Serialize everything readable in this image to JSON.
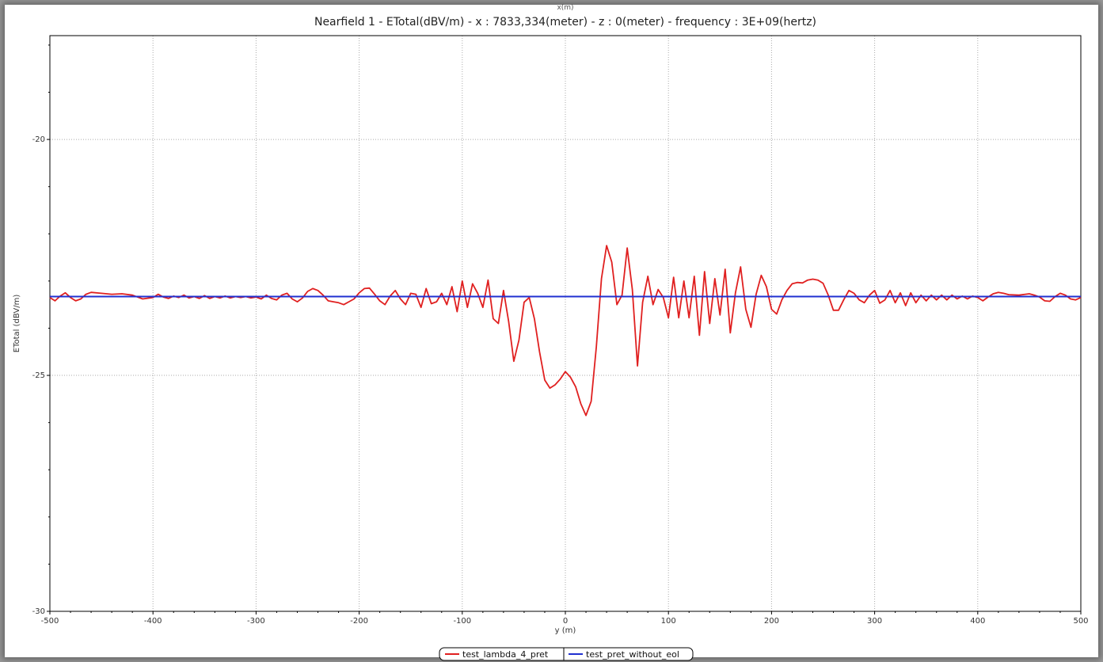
{
  "chart_data": {
    "type": "line",
    "top_axis_label": "x(m)",
    "title": "Nearfield 1 - ETotal(dBV/m) - x : 7833,334(meter) - z : 0(meter) - frequency : 3E+09(hertz)",
    "xlabel": "y (m)",
    "ylabel": "ETotal (dBV/m)",
    "xlim": [
      -500,
      500
    ],
    "ylim": [
      -30,
      -17.8
    ],
    "x_ticks": [
      -500,
      -400,
      -300,
      -200,
      -100,
      0,
      100,
      200,
      300,
      400,
      500
    ],
    "y_ticks": [
      -20,
      -25,
      -30
    ],
    "grid": true,
    "legend_position": "bottom-center",
    "series": [
      {
        "name": "test_lambda_4_pret",
        "color": "#e02020",
        "points": [
          [
            -500,
            -23.35
          ],
          [
            -495,
            -23.42
          ],
          [
            -490,
            -23.32
          ],
          [
            -485,
            -23.25
          ],
          [
            -480,
            -23.35
          ],
          [
            -475,
            -23.42
          ],
          [
            -470,
            -23.38
          ],
          [
            -465,
            -23.28
          ],
          [
            -460,
            -23.24
          ],
          [
            -450,
            -23.26
          ],
          [
            -440,
            -23.28
          ],
          [
            -430,
            -23.27
          ],
          [
            -420,
            -23.3
          ],
          [
            -410,
            -23.38
          ],
          [
            -400,
            -23.35
          ],
          [
            -395,
            -23.28
          ],
          [
            -390,
            -23.34
          ],
          [
            -385,
            -23.37
          ],
          [
            -380,
            -23.32
          ],
          [
            -375,
            -23.35
          ],
          [
            -370,
            -23.3
          ],
          [
            -365,
            -23.36
          ],
          [
            -360,
            -23.33
          ],
          [
            -355,
            -23.37
          ],
          [
            -350,
            -23.31
          ],
          [
            -345,
            -23.37
          ],
          [
            -340,
            -23.33
          ],
          [
            -335,
            -23.36
          ],
          [
            -330,
            -23.32
          ],
          [
            -325,
            -23.36
          ],
          [
            -320,
            -23.33
          ],
          [
            -315,
            -23.35
          ],
          [
            -310,
            -23.33
          ],
          [
            -305,
            -23.36
          ],
          [
            -300,
            -23.34
          ],
          [
            -295,
            -23.38
          ],
          [
            -290,
            -23.3
          ],
          [
            -285,
            -23.37
          ],
          [
            -280,
            -23.4
          ],
          [
            -275,
            -23.3
          ],
          [
            -270,
            -23.26
          ],
          [
            -265,
            -23.38
          ],
          [
            -260,
            -23.44
          ],
          [
            -255,
            -23.36
          ],
          [
            -250,
            -23.22
          ],
          [
            -245,
            -23.16
          ],
          [
            -240,
            -23.2
          ],
          [
            -235,
            -23.3
          ],
          [
            -230,
            -23.42
          ],
          [
            -225,
            -23.44
          ],
          [
            -220,
            -23.46
          ],
          [
            -215,
            -23.5
          ],
          [
            -210,
            -23.44
          ],
          [
            -205,
            -23.38
          ],
          [
            -200,
            -23.25
          ],
          [
            -195,
            -23.16
          ],
          [
            -190,
            -23.15
          ],
          [
            -185,
            -23.28
          ],
          [
            -180,
            -23.42
          ],
          [
            -175,
            -23.5
          ],
          [
            -170,
            -23.32
          ],
          [
            -165,
            -23.2
          ],
          [
            -160,
            -23.38
          ],
          [
            -155,
            -23.5
          ],
          [
            -150,
            -23.26
          ],
          [
            -145,
            -23.28
          ],
          [
            -140,
            -23.56
          ],
          [
            -135,
            -23.16
          ],
          [
            -130,
            -23.48
          ],
          [
            -125,
            -23.44
          ],
          [
            -120,
            -23.26
          ],
          [
            -115,
            -23.5
          ],
          [
            -110,
            -23.12
          ],
          [
            -105,
            -23.65
          ],
          [
            -100,
            -23.0
          ],
          [
            -95,
            -23.56
          ],
          [
            -90,
            -23.06
          ],
          [
            -85,
            -23.26
          ],
          [
            -80,
            -23.56
          ],
          [
            -75,
            -22.98
          ],
          [
            -70,
            -23.8
          ],
          [
            -65,
            -23.9
          ],
          [
            -60,
            -23.2
          ],
          [
            -55,
            -23.86
          ],
          [
            -50,
            -24.7
          ],
          [
            -45,
            -24.25
          ],
          [
            -40,
            -23.45
          ],
          [
            -35,
            -23.35
          ],
          [
            -30,
            -23.8
          ],
          [
            -25,
            -24.5
          ],
          [
            -20,
            -25.1
          ],
          [
            -15,
            -25.27
          ],
          [
            -10,
            -25.2
          ],
          [
            -5,
            -25.08
          ],
          [
            0,
            -24.92
          ],
          [
            5,
            -25.04
          ],
          [
            10,
            -25.24
          ],
          [
            15,
            -25.6
          ],
          [
            20,
            -25.85
          ],
          [
            25,
            -25.55
          ],
          [
            30,
            -24.4
          ],
          [
            35,
            -22.95
          ],
          [
            40,
            -22.25
          ],
          [
            45,
            -22.6
          ],
          [
            50,
            -23.5
          ],
          [
            55,
            -23.3
          ],
          [
            60,
            -22.3
          ],
          [
            65,
            -23.18
          ],
          [
            70,
            -24.8
          ],
          [
            75,
            -23.45
          ],
          [
            80,
            -22.9
          ],
          [
            85,
            -23.5
          ],
          [
            90,
            -23.18
          ],
          [
            95,
            -23.35
          ],
          [
            100,
            -23.78
          ],
          [
            105,
            -22.92
          ],
          [
            110,
            -23.78
          ],
          [
            115,
            -23.0
          ],
          [
            120,
            -23.78
          ],
          [
            125,
            -22.9
          ],
          [
            130,
            -24.15
          ],
          [
            135,
            -22.8
          ],
          [
            140,
            -23.9
          ],
          [
            145,
            -22.95
          ],
          [
            150,
            -23.72
          ],
          [
            155,
            -22.75
          ],
          [
            160,
            -24.1
          ],
          [
            165,
            -23.25
          ],
          [
            170,
            -22.7
          ],
          [
            175,
            -23.6
          ],
          [
            180,
            -23.98
          ],
          [
            185,
            -23.28
          ],
          [
            190,
            -22.88
          ],
          [
            195,
            -23.12
          ],
          [
            200,
            -23.6
          ],
          [
            205,
            -23.7
          ],
          [
            210,
            -23.4
          ],
          [
            215,
            -23.2
          ],
          [
            220,
            -23.06
          ],
          [
            225,
            -23.03
          ],
          [
            230,
            -23.04
          ],
          [
            235,
            -22.98
          ],
          [
            240,
            -22.96
          ],
          [
            245,
            -22.98
          ],
          [
            250,
            -23.05
          ],
          [
            255,
            -23.3
          ],
          [
            260,
            -23.62
          ],
          [
            265,
            -23.62
          ],
          [
            270,
            -23.4
          ],
          [
            275,
            -23.2
          ],
          [
            280,
            -23.26
          ],
          [
            285,
            -23.4
          ],
          [
            290,
            -23.46
          ],
          [
            295,
            -23.3
          ],
          [
            300,
            -23.2
          ],
          [
            305,
            -23.47
          ],
          [
            310,
            -23.4
          ],
          [
            315,
            -23.2
          ],
          [
            320,
            -23.46
          ],
          [
            325,
            -23.25
          ],
          [
            330,
            -23.52
          ],
          [
            335,
            -23.25
          ],
          [
            340,
            -23.46
          ],
          [
            345,
            -23.3
          ],
          [
            350,
            -23.42
          ],
          [
            355,
            -23.3
          ],
          [
            360,
            -23.4
          ],
          [
            365,
            -23.3
          ],
          [
            370,
            -23.4
          ],
          [
            375,
            -23.3
          ],
          [
            380,
            -23.38
          ],
          [
            385,
            -23.32
          ],
          [
            390,
            -23.38
          ],
          [
            395,
            -23.32
          ],
          [
            400,
            -23.35
          ],
          [
            405,
            -23.42
          ],
          [
            410,
            -23.34
          ],
          [
            415,
            -23.27
          ],
          [
            420,
            -23.24
          ],
          [
            425,
            -23.26
          ],
          [
            430,
            -23.29
          ],
          [
            440,
            -23.3
          ],
          [
            450,
            -23.27
          ],
          [
            455,
            -23.3
          ],
          [
            460,
            -23.34
          ],
          [
            465,
            -23.42
          ],
          [
            470,
            -23.43
          ],
          [
            475,
            -23.33
          ],
          [
            480,
            -23.26
          ],
          [
            485,
            -23.3
          ],
          [
            490,
            -23.38
          ],
          [
            495,
            -23.4
          ],
          [
            500,
            -23.35
          ]
        ]
      },
      {
        "name": "test_pret_without_eol",
        "color": "#2030d0",
        "points": [
          [
            -500,
            -23.33
          ],
          [
            500,
            -23.33
          ]
        ]
      }
    ]
  }
}
